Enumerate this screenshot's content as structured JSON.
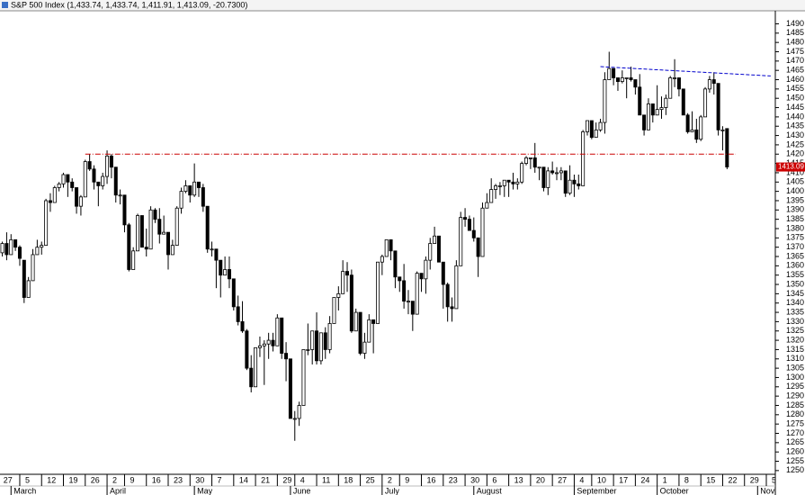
{
  "chart_data": {
    "type": "candlestick",
    "title": "S&P 500 Index (1,433.74, 1,433.74, 1,411.91, 1,413.09, -20.7300)",
    "up_color": "#ffffff",
    "down_color": "#000000",
    "ylim": [
      1248,
      1497
    ],
    "yticks": [
      1250,
      1255,
      1260,
      1265,
      1270,
      1275,
      1280,
      1285,
      1290,
      1295,
      1300,
      1305,
      1310,
      1315,
      1320,
      1325,
      1330,
      1335,
      1340,
      1345,
      1350,
      1355,
      1360,
      1365,
      1370,
      1375,
      1380,
      1385,
      1390,
      1395,
      1400,
      1405,
      1410,
      1415,
      1420,
      1425,
      1430,
      1435,
      1440,
      1445,
      1450,
      1455,
      1460,
      1465,
      1470,
      1475,
      1480,
      1485,
      1490
    ],
    "last_price": 1413.09,
    "x": [
      "Feb 27",
      "Feb 28",
      "Feb 29",
      "Mar 1",
      "Mar 2",
      "Mar 5",
      "Mar 6",
      "Mar 7",
      "Mar 8",
      "Mar 9",
      "Mar 12",
      "Mar 13",
      "Mar 14",
      "Mar 15",
      "Mar 16",
      "Mar 19",
      "Mar 20",
      "Mar 21",
      "Mar 22",
      "Mar 23",
      "Mar 26",
      "Mar 27",
      "Mar 28",
      "Mar 29",
      "Mar 30",
      "Apr 2",
      "Apr 3",
      "Apr 4",
      "Apr 5",
      "Apr 9",
      "Apr 10",
      "Apr 11",
      "Apr 12",
      "Apr 13",
      "Apr 16",
      "Apr 17",
      "Apr 18",
      "Apr 19",
      "Apr 20",
      "Apr 23",
      "Apr 24",
      "Apr 25",
      "Apr 26",
      "Apr 27",
      "Apr 30",
      "May 1",
      "May 2",
      "May 3",
      "May 4",
      "May 7",
      "May 8",
      "May 9",
      "May 10",
      "May 11",
      "May 14",
      "May 15",
      "May 16",
      "May 17",
      "May 18",
      "May 21",
      "May 22",
      "May 23",
      "May 24",
      "May 25",
      "May 29",
      "May 30",
      "May 31",
      "Jun 1",
      "Jun 4",
      "Jun 5",
      "Jun 6",
      "Jun 7",
      "Jun 8",
      "Jun 11",
      "Jun 12",
      "Jun 13",
      "Jun 14",
      "Jun 15",
      "Jun 18",
      "Jun 19",
      "Jun 20",
      "Jun 21",
      "Jun 22",
      "Jun 25",
      "Jun 26",
      "Jun 27",
      "Jun 28",
      "Jun 29",
      "Jul 2",
      "Jul 3",
      "Jul 5",
      "Jul 6",
      "Jul 9",
      "Jul 10",
      "Jul 11",
      "Jul 12",
      "Jul 13",
      "Jul 16",
      "Jul 17",
      "Jul 18",
      "Jul 19",
      "Jul 20",
      "Jul 23",
      "Jul 24",
      "Jul 25",
      "Jul 26",
      "Jul 27",
      "Jul 30",
      "Jul 31",
      "Aug 1",
      "Aug 2",
      "Aug 3",
      "Aug 6",
      "Aug 7",
      "Aug 8",
      "Aug 9",
      "Aug 10",
      "Aug 13",
      "Aug 14",
      "Aug 15",
      "Aug 16",
      "Aug 17",
      "Aug 20",
      "Aug 21",
      "Aug 22",
      "Aug 23",
      "Aug 24",
      "Aug 27",
      "Aug 28",
      "Aug 29",
      "Aug 30",
      "Aug 31",
      "Sep 4",
      "Sep 5",
      "Sep 6",
      "Sep 7",
      "Sep 10",
      "Sep 11",
      "Sep 12",
      "Sep 13",
      "Sep 14",
      "Sep 17",
      "Sep 18",
      "Sep 19",
      "Sep 20",
      "Sep 21",
      "Sep 24",
      "Sep 25",
      "Sep 26",
      "Sep 27",
      "Sep 28",
      "Oct 1",
      "Oct 2",
      "Oct 3",
      "Oct 4",
      "Oct 5",
      "Oct 8",
      "Oct 9",
      "Oct 10",
      "Oct 11",
      "Oct 12",
      "Oct 15",
      "Oct 16",
      "Oct 17",
      "Oct 18",
      "Oct 19",
      "Oct 22",
      "Oct 23",
      "Oct 24",
      "Oct 25",
      "Oct 26",
      "Oct 29",
      "Oct 30",
      "Oct 31",
      "Nov 1",
      "Nov 2",
      "Nov 5",
      "Nov 6"
    ],
    "ohlc": [
      [
        1365,
        1371,
        1354,
        1367
      ],
      [
        1367,
        1373,
        1365,
        1372
      ],
      [
        1372,
        1378,
        1363,
        1366
      ],
      [
        1366,
        1377,
        1366,
        1374
      ],
      [
        1374,
        1374,
        1368,
        1370
      ],
      [
        1370,
        1371,
        1360,
        1364
      ],
      [
        1363,
        1363,
        1340,
        1343
      ],
      [
        1343,
        1354,
        1343,
        1352
      ],
      [
        1352,
        1369,
        1352,
        1366
      ],
      [
        1366,
        1374,
        1366,
        1370
      ],
      [
        1370,
        1373,
        1366,
        1371
      ],
      [
        1371,
        1396,
        1371,
        1395
      ],
      [
        1395,
        1399,
        1389,
        1394
      ],
      [
        1394,
        1403,
        1394,
        1402
      ],
      [
        1402,
        1405,
        1400,
        1404
      ],
      [
        1404,
        1410,
        1402,
        1409
      ],
      [
        1409,
        1409,
        1397,
        1405
      ],
      [
        1405,
        1407,
        1400,
        1402
      ],
      [
        1402,
        1402,
        1388,
        1392
      ],
      [
        1392,
        1398,
        1387,
        1397
      ],
      [
        1397,
        1417,
        1397,
        1416
      ],
      [
        1416,
        1420,
        1411,
        1412
      ],
      [
        1412,
        1414,
        1401,
        1405
      ],
      [
        1405,
        1405,
        1392,
        1403
      ],
      [
        1403,
        1410,
        1401,
        1408
      ],
      [
        1408,
        1422,
        1404,
        1419
      ],
      [
        1419,
        1420,
        1407,
        1413
      ],
      [
        1413,
        1413,
        1394,
        1398
      ],
      [
        1398,
        1401,
        1393,
        1398
      ],
      [
        1398,
        1398,
        1378,
        1382
      ],
      [
        1382,
        1383,
        1357,
        1358
      ],
      [
        1358,
        1370,
        1358,
        1368
      ],
      [
        1368,
        1388,
        1368,
        1387
      ],
      [
        1387,
        1387,
        1370,
        1370
      ],
      [
        1370,
        1380,
        1365,
        1369
      ],
      [
        1369,
        1392,
        1369,
        1390
      ],
      [
        1390,
        1391,
        1383,
        1385
      ],
      [
        1385,
        1391,
        1372,
        1377
      ],
      [
        1377,
        1387,
        1377,
        1378
      ],
      [
        1378,
        1378,
        1358,
        1366
      ],
      [
        1366,
        1374,
        1366,
        1371
      ],
      [
        1371,
        1392,
        1371,
        1391
      ],
      [
        1391,
        1402,
        1388,
        1400
      ],
      [
        1400,
        1406,
        1399,
        1403
      ],
      [
        1403,
        1403,
        1394,
        1398
      ],
      [
        1398,
        1415,
        1397,
        1405
      ],
      [
        1405,
        1405,
        1397,
        1402
      ],
      [
        1402,
        1404,
        1389,
        1392
      ],
      [
        1392,
        1392,
        1367,
        1369
      ],
      [
        1369,
        1373,
        1365,
        1369
      ],
      [
        1369,
        1369,
        1348,
        1363
      ],
      [
        1363,
        1363,
        1343,
        1355
      ],
      [
        1355,
        1365,
        1355,
        1358
      ],
      [
        1358,
        1365,
        1348,
        1353
      ],
      [
        1353,
        1353,
        1336,
        1338
      ],
      [
        1338,
        1344,
        1328,
        1330
      ],
      [
        1330,
        1341,
        1324,
        1325
      ],
      [
        1325,
        1326,
        1304,
        1305
      ],
      [
        1305,
        1312,
        1292,
        1295
      ],
      [
        1295,
        1316,
        1295,
        1316
      ],
      [
        1316,
        1322,
        1311,
        1317
      ],
      [
        1317,
        1320,
        1296,
        1318
      ],
      [
        1318,
        1324,
        1310,
        1320
      ],
      [
        1320,
        1324,
        1314,
        1317
      ],
      [
        1317,
        1334,
        1317,
        1332
      ],
      [
        1332,
        1332,
        1310,
        1313
      ],
      [
        1313,
        1319,
        1298,
        1310
      ],
      [
        1310,
        1310,
        1278,
        1278
      ],
      [
        1278,
        1282,
        1266,
        1278
      ],
      [
        1278,
        1287,
        1274,
        1285
      ],
      [
        1285,
        1315,
        1285,
        1315
      ],
      [
        1315,
        1329,
        1312,
        1315
      ],
      [
        1315,
        1325,
        1307,
        1325
      ],
      [
        1325,
        1335,
        1307,
        1309
      ],
      [
        1309,
        1324,
        1307,
        1324
      ],
      [
        1324,
        1327,
        1310,
        1315
      ],
      [
        1315,
        1333,
        1313,
        1329
      ],
      [
        1329,
        1343,
        1329,
        1343
      ],
      [
        1343,
        1349,
        1336,
        1345
      ],
      [
        1345,
        1363,
        1345,
        1357
      ],
      [
        1357,
        1362,
        1346,
        1355
      ],
      [
        1355,
        1358,
        1324,
        1325
      ],
      [
        1325,
        1337,
        1325,
        1335
      ],
      [
        1335,
        1335,
        1312,
        1313
      ],
      [
        1313,
        1324,
        1310,
        1319
      ],
      [
        1319,
        1334,
        1319,
        1331
      ],
      [
        1331,
        1331,
        1313,
        1329
      ],
      [
        1329,
        1362,
        1329,
        1362
      ],
      [
        1362,
        1366,
        1355,
        1365
      ],
      [
        1365,
        1374,
        1365,
        1374
      ],
      [
        1374,
        1374,
        1363,
        1368
      ],
      [
        1368,
        1368,
        1348,
        1354
      ],
      [
        1354,
        1354,
        1346,
        1352
      ],
      [
        1352,
        1361,
        1337,
        1341
      ],
      [
        1341,
        1347,
        1334,
        1341
      ],
      [
        1341,
        1341,
        1325,
        1334
      ],
      [
        1334,
        1357,
        1334,
        1356
      ],
      [
        1356,
        1356,
        1346,
        1353
      ],
      [
        1353,
        1365,
        1345,
        1363
      ],
      [
        1363,
        1375,
        1358,
        1372
      ],
      [
        1372,
        1381,
        1372,
        1376
      ],
      [
        1376,
        1376,
        1362,
        1362
      ],
      [
        1362,
        1362,
        1337,
        1350
      ],
      [
        1350,
        1351,
        1330,
        1338
      ],
      [
        1338,
        1343,
        1330,
        1337
      ],
      [
        1337,
        1363,
        1337,
        1360
      ],
      [
        1360,
        1389,
        1360,
        1386
      ],
      [
        1386,
        1391,
        1381,
        1385
      ],
      [
        1385,
        1387,
        1379,
        1379
      ],
      [
        1379,
        1386,
        1373,
        1375
      ],
      [
        1375,
        1375,
        1354,
        1365
      ],
      [
        1365,
        1394,
        1365,
        1391
      ],
      [
        1391,
        1399,
        1391,
        1394
      ],
      [
        1394,
        1407,
        1394,
        1401
      ],
      [
        1401,
        1404,
        1396,
        1403
      ],
      [
        1403,
        1405,
        1398,
        1403
      ],
      [
        1403,
        1406,
        1397,
        1406
      ],
      [
        1406,
        1406,
        1397,
        1405
      ],
      [
        1405,
        1410,
        1401,
        1404
      ],
      [
        1404,
        1407,
        1401,
        1405
      ],
      [
        1405,
        1416,
        1404,
        1415
      ],
      [
        1415,
        1419,
        1414,
        1418
      ],
      [
        1418,
        1418,
        1412,
        1418
      ],
      [
        1418,
        1426,
        1410,
        1413
      ],
      [
        1413,
        1413,
        1406,
        1413
      ],
      [
        1413,
        1413,
        1400,
        1402
      ],
      [
        1402,
        1413,
        1398,
        1411
      ],
      [
        1411,
        1416,
        1409,
        1410
      ],
      [
        1410,
        1413,
        1406,
        1410
      ],
      [
        1410,
        1413,
        1406,
        1411
      ],
      [
        1411,
        1411,
        1397,
        1399
      ],
      [
        1399,
        1414,
        1398,
        1406
      ],
      [
        1406,
        1409,
        1397,
        1404
      ],
      [
        1404,
        1409,
        1401,
        1403
      ],
      [
        1403,
        1433,
        1403,
        1432
      ],
      [
        1432,
        1438,
        1430,
        1438
      ],
      [
        1438,
        1438,
        1428,
        1429
      ],
      [
        1429,
        1437,
        1429,
        1433
      ],
      [
        1433,
        1439,
        1432,
        1437
      ],
      [
        1437,
        1464,
        1431,
        1460
      ],
      [
        1460,
        1475,
        1460,
        1466
      ],
      [
        1466,
        1466,
        1457,
        1461
      ],
      [
        1461,
        1461,
        1454,
        1459
      ],
      [
        1459,
        1465,
        1458,
        1461
      ],
      [
        1461,
        1461,
        1450,
        1461
      ],
      [
        1461,
        1467,
        1459,
        1460
      ],
      [
        1460,
        1460,
        1452,
        1456
      ],
      [
        1456,
        1463,
        1441,
        1441
      ],
      [
        1441,
        1441,
        1430,
        1433
      ],
      [
        1433,
        1450,
        1433,
        1447
      ],
      [
        1447,
        1447,
        1437,
        1441
      ],
      [
        1441,
        1457,
        1441,
        1444
      ],
      [
        1444,
        1451,
        1439,
        1445
      ],
      [
        1445,
        1452,
        1441,
        1450
      ],
      [
        1450,
        1462,
        1450,
        1461
      ],
      [
        1461,
        1471,
        1456,
        1461
      ],
      [
        1461,
        1461,
        1451,
        1455
      ],
      [
        1455,
        1455,
        1441,
        1441
      ],
      [
        1441,
        1442,
        1431,
        1432
      ],
      [
        1432,
        1443,
        1432,
        1433
      ],
      [
        1433,
        1439,
        1426,
        1428
      ],
      [
        1428,
        1441,
        1427,
        1440
      ],
      [
        1440,
        1456,
        1440,
        1455
      ],
      [
        1455,
        1462,
        1453,
        1460
      ],
      [
        1460,
        1464,
        1452,
        1458
      ],
      [
        1458,
        1458,
        1430,
        1433
      ],
      [
        1433,
        1435,
        1422,
        1433
      ],
      [
        1433.74,
        1433.74,
        1411.91,
        1413.09
      ],
      null,
      null,
      null,
      null,
      null,
      null,
      null,
      null,
      null,
      null
    ],
    "xticks": [
      {
        "value": "Feb 27",
        "label": "27"
      },
      {
        "value": "Mar 5",
        "label": "5"
      },
      {
        "value": "Mar 12",
        "label": "12"
      },
      {
        "value": "Mar 19",
        "label": "19"
      },
      {
        "value": "Mar 26",
        "label": "26"
      },
      {
        "value": "Apr 2",
        "label": "2"
      },
      {
        "value": "Apr 9",
        "label": "9"
      },
      {
        "value": "Apr 16",
        "label": "16"
      },
      {
        "value": "Apr 23",
        "label": "23"
      },
      {
        "value": "Apr 30",
        "label": "30"
      },
      {
        "value": "May 7",
        "label": "7"
      },
      {
        "value": "May 14",
        "label": "14"
      },
      {
        "value": "May 21",
        "label": "21"
      },
      {
        "value": "May 29",
        "label": "29"
      },
      {
        "value": "Jun 4",
        "label": "4"
      },
      {
        "value": "Jun 11",
        "label": "11"
      },
      {
        "value": "Jun 18",
        "label": "18"
      },
      {
        "value": "Jun 25",
        "label": "25"
      },
      {
        "value": "Jul 2",
        "label": "2"
      },
      {
        "value": "Jul 9",
        "label": "9"
      },
      {
        "value": "Jul 16",
        "label": "16"
      },
      {
        "value": "Jul 23",
        "label": "23"
      },
      {
        "value": "Jul 30",
        "label": "30"
      },
      {
        "value": "Aug 6",
        "label": "6"
      },
      {
        "value": "Aug 13",
        "label": "13"
      },
      {
        "value": "Aug 20",
        "label": "20"
      },
      {
        "value": "Aug 27",
        "label": "27"
      },
      {
        "value": "Sep 4",
        "label": "4"
      },
      {
        "value": "Sep 10",
        "label": "10"
      },
      {
        "value": "Sep 17",
        "label": "17"
      },
      {
        "value": "Sep 24",
        "label": "24"
      },
      {
        "value": "Oct 1",
        "label": "1"
      },
      {
        "value": "Oct 8",
        "label": "8"
      },
      {
        "value": "Oct 15",
        "label": "15"
      },
      {
        "value": "Oct 22",
        "label": "22"
      },
      {
        "value": "Oct 29",
        "label": "29"
      },
      {
        "value": "Nov 5",
        "label": "5"
      }
    ],
    "months": [
      {
        "value": "Mar 1",
        "label": "March"
      },
      {
        "value": "Apr 2",
        "label": "April"
      },
      {
        "value": "May 1",
        "label": "May"
      },
      {
        "value": "Jun 1",
        "label": "June"
      },
      {
        "value": "Jul 2",
        "label": "July"
      },
      {
        "value": "Aug 1",
        "label": "August"
      },
      {
        "value": "Sep 4",
        "label": "September"
      },
      {
        "value": "Oct 1",
        "label": "October"
      },
      {
        "value": "Nov 1",
        "label": "November"
      }
    ],
    "lines": [
      {
        "color": "#cc0000",
        "dash": "6 2 1 2",
        "from": [
          "Mar 26",
          1420
        ],
        "to": [
          "Oct 25",
          1420
        ]
      },
      {
        "color": "#0000cc",
        "dash": "4 2",
        "from": [
          "Sep 12",
          1467
        ],
        "to": [
          "Nov 6",
          1462
        ]
      }
    ]
  }
}
